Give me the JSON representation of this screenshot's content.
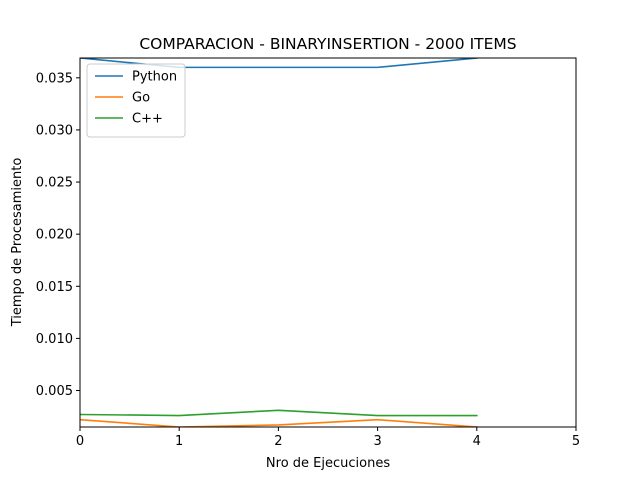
{
  "chart_data": {
    "type": "line",
    "title": "COMPARACION - BINARYINSERTION - 2000 ITEMS",
    "xlabel": "Nro de Ejecuciones",
    "ylabel": "Tiempo de Procesamiento",
    "xlim": [
      0,
      5
    ],
    "ylim": [
      0.0015,
      0.0369
    ],
    "xticks": [
      "0",
      "1",
      "2",
      "3",
      "4",
      "5"
    ],
    "yticks": [
      "0.005",
      "0.010",
      "0.015",
      "0.020",
      "0.025",
      "0.030",
      "0.035"
    ],
    "x": [
      0,
      1,
      2,
      3,
      4
    ],
    "grid": false,
    "legend_position": "top-left",
    "series": [
      {
        "name": "Python",
        "color": "#1f77b4",
        "values": [
          0.0369,
          0.036,
          0.036,
          0.036,
          0.0369
        ]
      },
      {
        "name": "Go",
        "color": "#ff7f0e",
        "values": [
          0.0022,
          0.0015,
          0.0017,
          0.0022,
          0.0015
        ]
      },
      {
        "name": "C++",
        "color": "#2ca02c",
        "values": [
          0.0027,
          0.0026,
          0.0031,
          0.0026,
          0.0026
        ]
      }
    ]
  }
}
